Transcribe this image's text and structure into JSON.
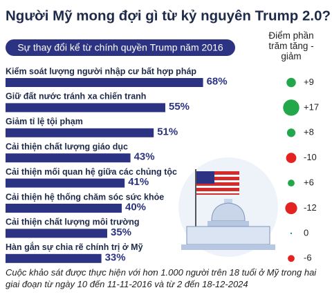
{
  "chart_data": {
    "type": "bar",
    "title": "Người Mỹ mong đợi gì từ kỷ nguyên Trump 2.0?",
    "subtitle": "Sự thay đổi kể từ chính quyền Trump năm 2016",
    "categories": [
      "Kiểm soát lượng người nhập cư bất hợp pháp",
      "Giữ đất nước tránh xa chiến tranh",
      "Giảm tỉ lệ tội phạm",
      "Cải thiện chất lượng giáo dục",
      "Cải thiện mối quan hệ giữa các chủng tộc",
      "Cải thiện hệ thống chăm sóc sức khỏe",
      "Cải thiện chất lượng môi trường",
      "Hàn gắn sự chia rẽ chính trị ở Mỹ"
    ],
    "values": [
      68,
      55,
      51,
      43,
      41,
      40,
      35,
      33
    ],
    "value_labels": [
      "68%",
      "55%",
      "51%",
      "43%",
      "41%",
      "40%",
      "35%",
      "33%"
    ],
    "color": "#2b3382",
    "change": {
      "title": "Điểm phần trăm tăng - giảm",
      "values": [
        9,
        17,
        8,
        -10,
        6,
        -12,
        0,
        -6
      ],
      "value_labels": [
        "+9",
        "+17",
        "+8",
        "-10",
        "+6",
        "-12",
        "0",
        "-6"
      ],
      "positive_color": "#22a84a",
      "negative_color": "#e3231f",
      "zero_color": "#1a8a9a"
    },
    "note": "Cuộc khảo sát được thực hiện với hơn 1.000 người trên 18 tuổi ở Mỹ trong hai giai đoạn từ ngày 10 đến 11-11-2016 và từ 2 đến 18-12-2024"
  }
}
